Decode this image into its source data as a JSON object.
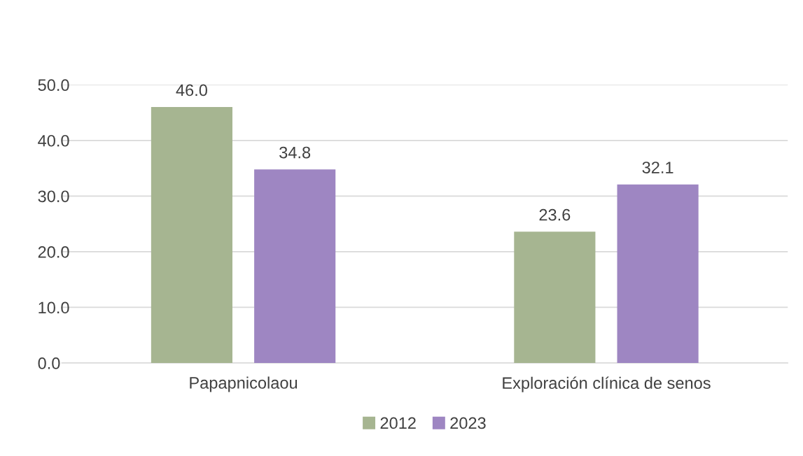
{
  "chart_data": {
    "type": "bar",
    "categories": [
      "Papapnicolaou",
      "Exploración clínica de senos"
    ],
    "series": [
      {
        "name": "2012",
        "color": "#a6b591",
        "values": [
          46.0,
          23.6
        ],
        "value_labels": [
          "46.0",
          "23.6"
        ]
      },
      {
        "name": "2023",
        "color": "#9e86c2",
        "values": [
          34.8,
          32.1
        ],
        "value_labels": [
          "34.8",
          "32.1"
        ]
      }
    ],
    "ylim": [
      0,
      50
    ],
    "yticks": [
      {
        "value": 0,
        "label": "0.0"
      },
      {
        "value": 10,
        "label": "10.0"
      },
      {
        "value": 20,
        "label": "20.0"
      },
      {
        "value": 30,
        "label": "30.0"
      },
      {
        "value": 40,
        "label": "40.0"
      },
      {
        "value": 50,
        "label": "50.0"
      }
    ],
    "grid": "y",
    "legend": "bottom"
  }
}
